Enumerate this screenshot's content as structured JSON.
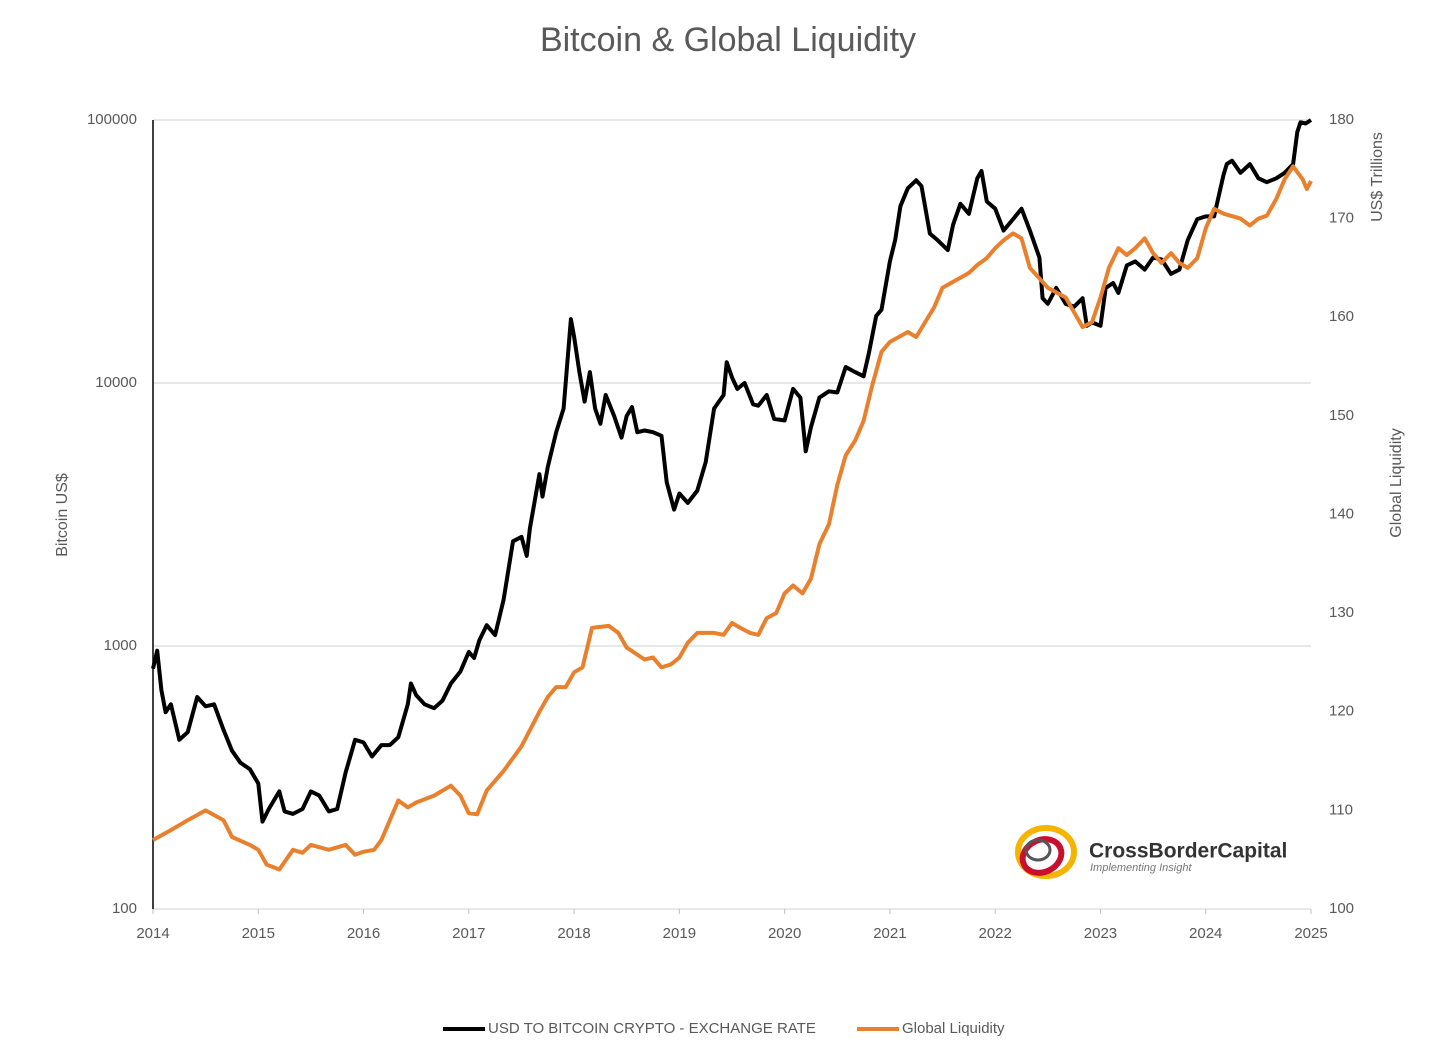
{
  "chart_data": {
    "type": "line",
    "title": "Bitcoin & Global Liquidity",
    "y_label": "Bitcoin US$",
    "y2_labels": [
      "US$ Trillions",
      "Global Liquidity"
    ],
    "logo": {
      "name": "CrossBorderCapital",
      "tagline": "Implementing Insight"
    },
    "xlim": [
      2014,
      2025
    ],
    "xticks": [
      2014,
      2015,
      2016,
      2017,
      2018,
      2019,
      2020,
      2021,
      2022,
      2023,
      2024,
      2025
    ],
    "yscale": "log",
    "ylim": [
      100,
      100000
    ],
    "yticks": [
      100,
      1000,
      10000,
      100000
    ],
    "y2lim": [
      100,
      180
    ],
    "y2ticks": [
      100,
      110,
      120,
      130,
      140,
      150,
      160,
      170,
      180
    ],
    "grid": true,
    "legend": "bottom",
    "series": [
      {
        "name": "USD TO BITCOIN CRYPTO - EXCHANGE RATE",
        "color": "#000000",
        "x": [
          2014.0,
          2014.04,
          2014.08,
          2014.12,
          2014.17,
          2014.25,
          2014.33,
          2014.42,
          2014.5,
          2014.58,
          2014.67,
          2014.75,
          2014.83,
          2014.92,
          2015.0,
          2015.04,
          2015.1,
          2015.2,
          2015.25,
          2015.33,
          2015.42,
          2015.5,
          2015.58,
          2015.67,
          2015.75,
          2015.83,
          2015.92,
          2016.0,
          2016.08,
          2016.17,
          2016.25,
          2016.33,
          2016.42,
          2016.45,
          2016.5,
          2016.58,
          2016.67,
          2016.75,
          2016.83,
          2016.92,
          2017.0,
          2017.05,
          2017.1,
          2017.17,
          2017.25,
          2017.33,
          2017.42,
          2017.5,
          2017.55,
          2017.58,
          2017.67,
          2017.7,
          2017.75,
          2017.83,
          2017.9,
          2017.95,
          2017.97,
          2018.0,
          2018.05,
          2018.1,
          2018.15,
          2018.2,
          2018.25,
          2018.3,
          2018.38,
          2018.45,
          2018.5,
          2018.55,
          2018.6,
          2018.67,
          2018.75,
          2018.83,
          2018.88,
          2018.95,
          2019.0,
          2019.08,
          2019.17,
          2019.25,
          2019.33,
          2019.42,
          2019.45,
          2019.5,
          2019.55,
          2019.62,
          2019.7,
          2019.75,
          2019.83,
          2019.9,
          2020.0,
          2020.08,
          2020.15,
          2020.2,
          2020.25,
          2020.33,
          2020.42,
          2020.5,
          2020.58,
          2020.67,
          2020.75,
          2020.8,
          2020.87,
          2020.92,
          2021.0,
          2021.05,
          2021.1,
          2021.17,
          2021.25,
          2021.3,
          2021.38,
          2021.45,
          2021.55,
          2021.6,
          2021.67,
          2021.75,
          2021.83,
          2021.87,
          2021.92,
          2022.0,
          2022.08,
          2022.17,
          2022.25,
          2022.33,
          2022.42,
          2022.45,
          2022.5,
          2022.58,
          2022.67,
          2022.75,
          2022.83,
          2022.87,
          2022.92,
          2023.0,
          2023.05,
          2023.12,
          2023.17,
          2023.25,
          2023.33,
          2023.42,
          2023.5,
          2023.58,
          2023.67,
          2023.75,
          2023.83,
          2023.92,
          2024.0,
          2024.08,
          2024.17,
          2024.2,
          2024.25,
          2024.33,
          2024.42,
          2024.5,
          2024.58,
          2024.67,
          2024.75,
          2024.83,
          2024.87,
          2024.9,
          2024.95,
          2025.0
        ],
        "values": [
          820,
          960,
          680,
          560,
          600,
          440,
          470,
          640,
          590,
          600,
          480,
          400,
          360,
          340,
          300,
          215,
          240,
          280,
          235,
          230,
          240,
          280,
          270,
          235,
          240,
          330,
          440,
          430,
          380,
          420,
          420,
          450,
          600,
          720,
          650,
          600,
          580,
          620,
          720,
          800,
          950,
          900,
          1050,
          1200,
          1100,
          1500,
          2500,
          2600,
          2200,
          2800,
          4500,
          3700,
          4800,
          6500,
          8000,
          14000,
          17500,
          15000,
          11000,
          8500,
          11000,
          8000,
          7000,
          9000,
          7500,
          6200,
          7500,
          8100,
          6500,
          6600,
          6500,
          6300,
          4200,
          3300,
          3800,
          3500,
          3900,
          5000,
          8000,
          9000,
          12000,
          10500,
          9500,
          10000,
          8300,
          8200,
          9000,
          7300,
          7200,
          9500,
          8800,
          5500,
          6800,
          8800,
          9300,
          9200,
          11500,
          11000,
          10600,
          13000,
          18000,
          19000,
          29000,
          35000,
          47000,
          55000,
          59000,
          56000,
          37000,
          35000,
          32000,
          40000,
          48000,
          44000,
          60000,
          64000,
          49000,
          46000,
          38000,
          42000,
          46000,
          38000,
          30000,
          21000,
          20000,
          23000,
          20000,
          19500,
          21000,
          16500,
          17000,
          16500,
          23000,
          24000,
          22000,
          28000,
          29000,
          27000,
          30000,
          29500,
          26000,
          27000,
          35000,
          42000,
          43000,
          43000,
          62000,
          68000,
          70000,
          63000,
          68000,
          60000,
          58000,
          60000,
          63000,
          68000,
          90000,
          98000,
          97000,
          100000
        ]
      },
      {
        "name": "Global Liquidity",
        "color": "#e8802e",
        "axis": "y2",
        "x": [
          2014.0,
          2014.17,
          2014.33,
          2014.5,
          2014.67,
          2014.75,
          2014.92,
          2015.0,
          2015.08,
          2015.2,
          2015.33,
          2015.42,
          2015.5,
          2015.67,
          2015.83,
          2015.92,
          2016.0,
          2016.1,
          2016.17,
          2016.25,
          2016.33,
          2016.42,
          2016.5,
          2016.67,
          2016.83,
          2016.92,
          2017.0,
          2017.08,
          2017.17,
          2017.33,
          2017.5,
          2017.67,
          2017.75,
          2017.83,
          2017.92,
          2018.0,
          2018.08,
          2018.17,
          2018.33,
          2018.42,
          2018.5,
          2018.67,
          2018.75,
          2018.83,
          2018.92,
          2019.0,
          2019.08,
          2019.17,
          2019.33,
          2019.42,
          2019.5,
          2019.58,
          2019.67,
          2019.75,
          2019.83,
          2019.92,
          2020.0,
          2020.08,
          2020.17,
          2020.25,
          2020.33,
          2020.42,
          2020.5,
          2020.58,
          2020.67,
          2020.75,
          2020.83,
          2020.92,
          2021.0,
          2021.17,
          2021.25,
          2021.42,
          2021.5,
          2021.67,
          2021.75,
          2021.83,
          2021.92,
          2022.0,
          2022.08,
          2022.17,
          2022.25,
          2022.33,
          2022.5,
          2022.67,
          2022.75,
          2022.83,
          2022.92,
          2023.0,
          2023.08,
          2023.17,
          2023.25,
          2023.33,
          2023.42,
          2023.5,
          2023.58,
          2023.67,
          2023.75,
          2023.83,
          2023.92,
          2024.0,
          2024.08,
          2024.17,
          2024.33,
          2024.42,
          2024.5,
          2024.58,
          2024.67,
          2024.75,
          2024.83,
          2024.92,
          2024.96,
          2025.0
        ],
        "values": [
          107,
          108,
          109,
          110,
          109,
          107.3,
          106.5,
          106,
          104.5,
          104,
          106,
          105.7,
          106.5,
          106,
          106.5,
          105.5,
          105.8,
          106,
          107,
          109,
          111,
          110.3,
          110.8,
          111.5,
          112.5,
          111.5,
          109.7,
          109.6,
          112,
          114,
          116.5,
          120,
          121.5,
          122.5,
          122.5,
          124,
          124.5,
          128.5,
          128.7,
          128,
          126.5,
          125.3,
          125.5,
          124.5,
          124.8,
          125.5,
          127,
          128,
          128,
          127.8,
          129,
          128.5,
          128,
          127.8,
          129.5,
          130,
          132,
          132.8,
          132,
          133.5,
          137,
          139,
          143,
          146,
          147.5,
          149.5,
          153,
          156.5,
          157.5,
          158.5,
          158,
          161,
          163,
          164,
          164.5,
          165.3,
          166,
          167,
          167.8,
          168.5,
          168,
          165,
          163,
          162,
          160.5,
          159,
          159.5,
          162,
          165,
          167,
          166.3,
          167,
          168,
          166.5,
          165.5,
          166.5,
          165.5,
          165,
          166,
          169,
          171,
          170.5,
          170,
          169.3,
          170,
          170.3,
          172,
          174,
          175.3,
          174,
          173,
          173.8
        ]
      }
    ]
  }
}
